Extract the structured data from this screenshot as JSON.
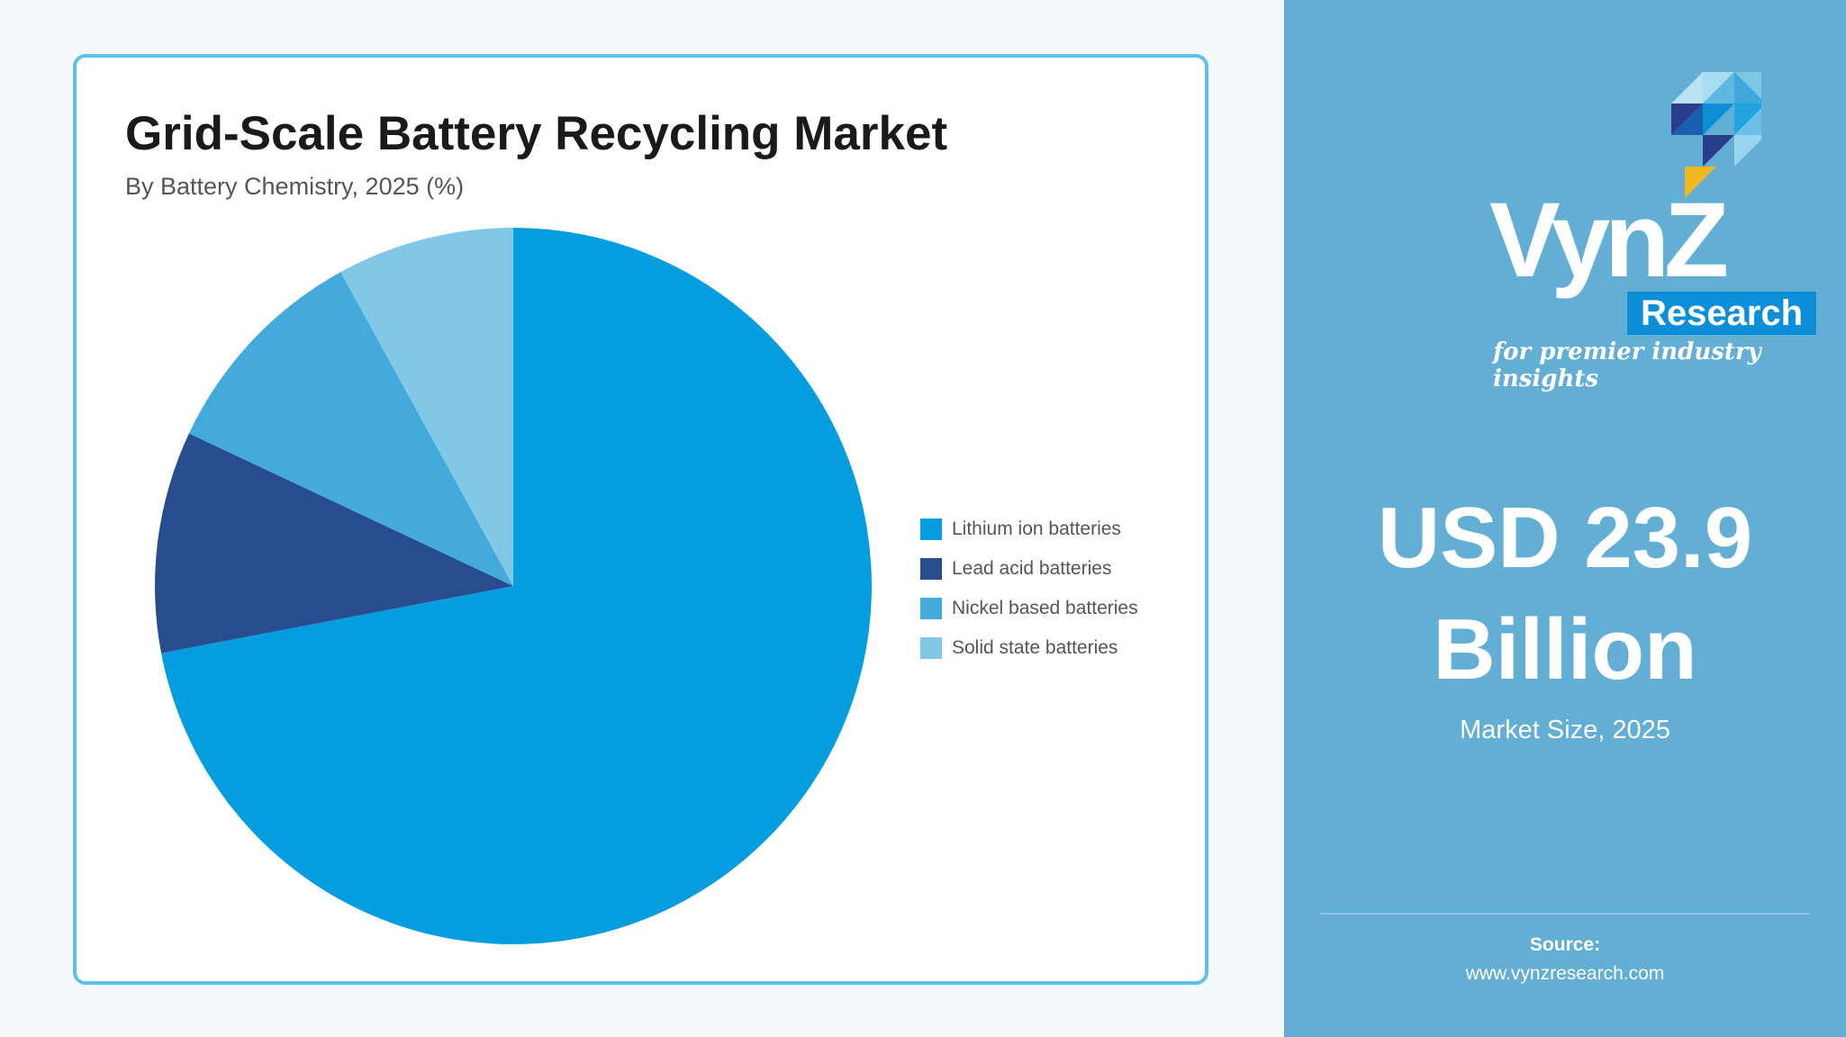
{
  "chart_data": {
    "type": "pie",
    "title": "Grid-Scale Battery Recycling Market",
    "subtitle": "By Battery Chemistry, 2025 (%)",
    "categories": [
      "Lithium ion batteries",
      "Lead acid batteries",
      "Nickel based batteries",
      "Solid state batteries"
    ],
    "values": [
      72,
      10,
      10,
      8
    ],
    "colors": [
      "#049ee0",
      "#284d8f",
      "#44aadb",
      "#80c8e5"
    ],
    "legend_position": "right"
  },
  "panel": {
    "logo": {
      "wordmark": "VynZ",
      "research": "Research",
      "tagline": "for premier industry insights"
    },
    "market_value": "USD 23.9 Billion",
    "market_label": "Market Size, 2025",
    "source_label": "Source:",
    "source_url": "www.vynzresearch.com"
  },
  "colors": {
    "panel_bg": "#62aed5",
    "card_border": "#5bc0ea",
    "logo_accent": "#f4b81f"
  }
}
